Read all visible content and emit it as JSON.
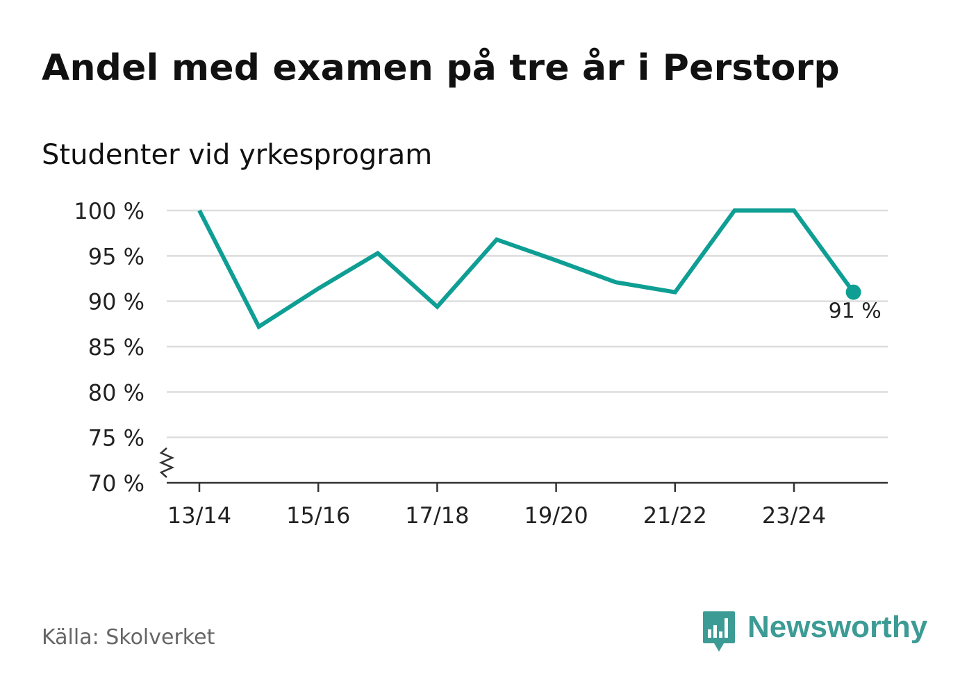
{
  "chart_data": {
    "type": "line",
    "title": "Andel med examen på tre år i Perstorp",
    "subtitle": "Studenter vid yrkesprogram",
    "x": [
      "13/14",
      "14/15",
      "15/16",
      "16/17",
      "17/18",
      "18/19",
      "19/20",
      "20/21",
      "21/22",
      "22/23",
      "23/24",
      "24/25"
    ],
    "x_tick_labels": [
      "13/14",
      "15/16",
      "17/18",
      "19/20",
      "21/22",
      "23/24"
    ],
    "series": [
      {
        "name": "Studenter vid yrkesprogram",
        "values": [
          100,
          87.2,
          91.4,
          95.3,
          89.4,
          96.8,
          94.5,
          92.1,
          91.0,
          100,
          100,
          91.0
        ],
        "color": "#0e9e94"
      }
    ],
    "y_ticks": [
      70,
      75,
      80,
      85,
      90,
      95,
      100
    ],
    "y_tick_labels": [
      "70 %",
      "75 %",
      "80 %",
      "85 %",
      "90 %",
      "95 %",
      "100 %"
    ],
    "ylim": [
      70,
      100
    ],
    "end_label": "91 %",
    "xlabel": "",
    "ylabel": "",
    "grid": true,
    "axis_break": true
  },
  "source": "Källa: Skolverket",
  "brand": {
    "name": "Newsworthy",
    "color": "#3d9b95",
    "icon": "bar-chart-speech-bubble-icon"
  }
}
